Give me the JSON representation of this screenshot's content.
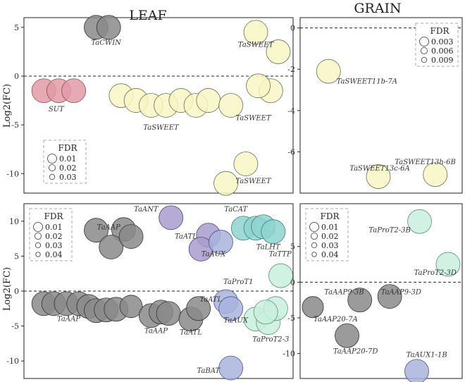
{
  "figure": {
    "title_left": "LEAF",
    "title_right": "GRAIN"
  },
  "colors": {
    "sut": "#e39aa6",
    "sweet": "#f8f6c4",
    "aa": "#8a8a8a",
    "blue": "#a9b3dd",
    "teal": "#8fd3cf",
    "mint": "#c9eede",
    "purple": "#a89ccc"
  },
  "chart_data": [
    {
      "id": "leaf_sugar",
      "type": "scatter",
      "title": "LEAF",
      "ylabel": "Log2(FC)",
      "ylim": [
        -12,
        6
      ],
      "yticks": [
        5,
        0,
        -5,
        -10
      ],
      "xlim": [
        0,
        100
      ],
      "grid": false,
      "reference_line": 0,
      "points": [
        {
          "x": 25,
          "y": 5.0,
          "fdr": 0.02,
          "group": "aa"
        },
        {
          "x": 30,
          "y": 5.0,
          "fdr": 0.015,
          "group": "aa"
        },
        {
          "x": 4,
          "y": -1.5,
          "fdr": 0.005,
          "group": "sut"
        },
        {
          "x": 10,
          "y": -1.5,
          "fdr": 0.005,
          "group": "sut"
        },
        {
          "x": 16,
          "y": -1.5,
          "fdr": 0.005,
          "group": "sut"
        },
        {
          "x": 35,
          "y": -2.0,
          "fdr": 0.004,
          "group": "sweet"
        },
        {
          "x": 41,
          "y": -2.5,
          "fdr": 0.004,
          "group": "sweet"
        },
        {
          "x": 47,
          "y": -3.0,
          "fdr": 0.006,
          "group": "sweet"
        },
        {
          "x": 53,
          "y": -3.0,
          "fdr": 0.006,
          "group": "sweet"
        },
        {
          "x": 59,
          "y": -2.5,
          "fdr": 0.008,
          "group": "sweet"
        },
        {
          "x": 65,
          "y": -3.0,
          "fdr": 0.008,
          "group": "sweet"
        },
        {
          "x": 70,
          "y": -2.5,
          "fdr": 0.008,
          "group": "sweet"
        },
        {
          "x": 79,
          "y": -3.0,
          "fdr": 0.012,
          "group": "sweet"
        },
        {
          "x": 89,
          "y": 4.5,
          "fdr": 0.01,
          "group": "sweet"
        },
        {
          "x": 98,
          "y": 2.5,
          "fdr": 0.02,
          "group": "sweet"
        },
        {
          "x": 95,
          "y": -1.5,
          "fdr": 0.018,
          "group": "sweet"
        },
        {
          "x": 90,
          "y": -1.0,
          "fdr": 0.03,
          "group": "sweet"
        },
        {
          "x": 85,
          "y": -9.0,
          "fdr": 0.01,
          "group": "sweet"
        },
        {
          "x": 77,
          "y": -11.0,
          "fdr": 0.006,
          "group": "sweet"
        }
      ],
      "annotations": [
        {
          "text": "TaCWIN",
          "x": 29,
          "y": 3.2
        },
        {
          "text": "SUT",
          "x": 9,
          "y": -3.6
        },
        {
          "text": "TaSWEET",
          "x": 51,
          "y": -5.5
        },
        {
          "text": "TaSWEET",
          "x": 89,
          "y": 3.0
        },
        {
          "text": "TaSWEET",
          "x": 88,
          "y": -4.5
        },
        {
          "text": "TaSWEET",
          "x": 88,
          "y": -11.0
        }
      ],
      "legend": {
        "title": "FDR",
        "placement": "bottom-left",
        "labels": [
          "0.01",
          "0.02",
          "0.03"
        ],
        "levels": [
          0.01,
          0.02,
          0.03
        ]
      }
    },
    {
      "id": "grain_sugar",
      "type": "scatter",
      "title": "GRAIN",
      "ylabel": "",
      "ylim": [
        -8,
        0.5
      ],
      "yticks": [
        0,
        -2,
        -4,
        -6
      ],
      "xlim": [
        0,
        100
      ],
      "grid": false,
      "reference_line": 0,
      "points": [
        {
          "x": 13,
          "y": -2.1,
          "fdr": 0.003,
          "group": "sweet"
        },
        {
          "x": 48,
          "y": -7.2,
          "fdr": 0.009,
          "group": "sweet"
        },
        {
          "x": 88,
          "y": -7.1,
          "fdr": 0.003,
          "group": "sweet"
        }
      ],
      "annotations": [
        {
          "text": "TaSWEET11b-7A",
          "x": 40,
          "y": -2.7
        },
        {
          "text": "TaSWEET13c-6A",
          "x": 49,
          "y": -6.9
        },
        {
          "text": "TaSWEET13h-6B",
          "x": 81,
          "y": -6.6
        }
      ],
      "legend": {
        "title": "FDR",
        "placement": "top-right",
        "labels": [
          "0.003",
          "0.006",
          "0.009"
        ],
        "levels": [
          0.003,
          0.006,
          0.009
        ]
      }
    },
    {
      "id": "leaf_amino",
      "type": "scatter",
      "title": "",
      "ylabel": "Log2(FC)",
      "ylim": [
        -12.5,
        12.5
      ],
      "yticks": [
        10,
        5,
        0,
        -5,
        -10
      ],
      "xlim": [
        0,
        100
      ],
      "grid": false,
      "reference_line": 0,
      "points": [
        {
          "x": 4,
          "y": -1.8,
          "fdr": 0.02,
          "group": "aa"
        },
        {
          "x": 8,
          "y": -1.8,
          "fdr": 0.015,
          "group": "aa"
        },
        {
          "x": 13,
          "y": -1.8,
          "fdr": 0.015,
          "group": "aa"
        },
        {
          "x": 18,
          "y": -1.8,
          "fdr": 0.02,
          "group": "aa"
        },
        {
          "x": 22,
          "y": -2.2,
          "fdr": 0.015,
          "group": "aa"
        },
        {
          "x": 25,
          "y": -2.8,
          "fdr": 0.012,
          "group": "aa"
        },
        {
          "x": 29,
          "y": -2.7,
          "fdr": 0.01,
          "group": "aa"
        },
        {
          "x": 33,
          "y": -2.6,
          "fdr": 0.015,
          "group": "aa"
        },
        {
          "x": 39,
          "y": -2.2,
          "fdr": 0.04,
          "group": "aa"
        },
        {
          "x": 25,
          "y": 8.7,
          "fdr": 0.012,
          "group": "aa"
        },
        {
          "x": 36,
          "y": 8.8,
          "fdr": 0.008,
          "group": "aa"
        },
        {
          "x": 31,
          "y": 6.3,
          "fdr": 0.014,
          "group": "aa"
        },
        {
          "x": 39,
          "y": 7.8,
          "fdr": 0.035,
          "group": "aa"
        },
        {
          "x": 47,
          "y": -3.5,
          "fdr": 0.035,
          "group": "aa"
        },
        {
          "x": 51,
          "y": -3.0,
          "fdr": 0.012,
          "group": "aa"
        },
        {
          "x": 54,
          "y": -3.2,
          "fdr": 0.006,
          "group": "aa"
        },
        {
          "x": 63,
          "y": -4.0,
          "fdr": 0.02,
          "group": "aa"
        },
        {
          "x": 66,
          "y": -2.5,
          "fdr": 0.035,
          "group": "aa"
        },
        {
          "x": 55,
          "y": 10.5,
          "fdr": 0.01,
          "group": "purple"
        },
        {
          "x": 70,
          "y": 8.0,
          "fdr": 0.02,
          "group": "purple"
        },
        {
          "x": 67,
          "y": 6.0,
          "fdr": 0.02,
          "group": "purple"
        },
        {
          "x": 75,
          "y": 7.0,
          "fdr": 0.035,
          "group": "blue"
        },
        {
          "x": 77,
          "y": -1.5,
          "fdr": 0.025,
          "group": "blue"
        },
        {
          "x": 79,
          "y": -2.5,
          "fdr": 0.015,
          "group": "blue"
        },
        {
          "x": 84,
          "y": 9.0,
          "fdr": 0.01,
          "group": "teal"
        },
        {
          "x": 89,
          "y": 9.0,
          "fdr": 0.02,
          "group": "teal"
        },
        {
          "x": 92,
          "y": 9.2,
          "fdr": 0.012,
          "group": "teal"
        },
        {
          "x": 96,
          "y": 8.5,
          "fdr": 0.015,
          "group": "teal"
        },
        {
          "x": 99,
          "y": 2.2,
          "fdr": 0.01,
          "group": "mint"
        },
        {
          "x": 89,
          "y": -4.0,
          "fdr": 0.015,
          "group": "mint"
        },
        {
          "x": 94,
          "y": -4.5,
          "fdr": 0.01,
          "group": "mint"
        },
        {
          "x": 97,
          "y": -2.5,
          "fdr": 0.01,
          "group": "mint"
        },
        {
          "x": 93,
          "y": -3.0,
          "fdr": 0.02,
          "group": "mint"
        },
        {
          "x": 79,
          "y": -11.0,
          "fdr": 0.01,
          "group": "blue"
        }
      ],
      "annotations": [
        {
          "text": "TaANT",
          "x": 45,
          "y": 11.4
        },
        {
          "text": "TaAAP",
          "x": 30,
          "y": 8.8
        },
        {
          "text": "TaATL",
          "x": 61,
          "y": 7.5
        },
        {
          "text": "TaAUX",
          "x": 72,
          "y": 5.0
        },
        {
          "text": "TaCAT",
          "x": 81,
          "y": 11.4
        },
        {
          "text": "TaLHT",
          "x": 94,
          "y": 6.0
        },
        {
          "text": "TaTTP",
          "x": 99,
          "y": 5.0
        },
        {
          "text": "TaProT1",
          "x": 82,
          "y": 1.0
        },
        {
          "text": "TaATL",
          "x": 71,
          "y": -1.5
        },
        {
          "text": "TaAAP",
          "x": 14,
          "y": -4.3
        },
        {
          "text": "TaAAP",
          "x": 49,
          "y": -6.0
        },
        {
          "text": "TaATL",
          "x": 63,
          "y": -6.2
        },
        {
          "text": "TaAUX",
          "x": 81,
          "y": -4.5
        },
        {
          "text": "TaProT2-3",
          "x": 95,
          "y": -7.2
        },
        {
          "text": "TaBAT",
          "x": 70,
          "y": -11.7
        }
      ],
      "legend": {
        "title": "FDR",
        "placement": "top-left",
        "labels": [
          "0.01",
          "0.02",
          "0.03",
          "0.04"
        ],
        "levels": [
          0.01,
          0.02,
          0.03,
          0.04
        ]
      }
    },
    {
      "id": "grain_amino",
      "type": "scatter",
      "title": "",
      "ylabel": "",
      "ylim": [
        -13.5,
        11
      ],
      "yticks": [
        5,
        0,
        -5,
        -10
      ],
      "xlim": [
        0,
        100
      ],
      "grid": false,
      "reference_line": 0,
      "points": [
        {
          "x": 77,
          "y": 8.5,
          "fdr": 0.01,
          "group": "mint"
        },
        {
          "x": 97,
          "y": 2.5,
          "fdr": 0.03,
          "group": "mint"
        },
        {
          "x": 35,
          "y": -2.5,
          "fdr": 0.035,
          "group": "aa"
        },
        {
          "x": 56,
          "y": -2.0,
          "fdr": 0.035,
          "group": "aa"
        },
        {
          "x": 2,
          "y": -3.5,
          "fdr": 0.045,
          "group": "aa"
        },
        {
          "x": 26,
          "y": -7.5,
          "fdr": 0.02,
          "group": "aa"
        },
        {
          "x": 75,
          "y": -12.5,
          "fdr": 0.01,
          "group": "blue"
        }
      ],
      "annotations": [
        {
          "text": "TaProT2-3B",
          "x": 56,
          "y": 7.0
        },
        {
          "text": "TaProT2-3D",
          "x": 88,
          "y": 1.0
        },
        {
          "text": "TaAAP9-3B",
          "x": 24,
          "y": -1.7
        },
        {
          "text": "TaAAP9-3D",
          "x": 64,
          "y": -1.7
        },
        {
          "text": "TaAAP20-7A",
          "x": 18,
          "y": -5.5
        },
        {
          "text": "TaAAP20-7D",
          "x": 32,
          "y": -10.0
        },
        {
          "text": "TaAUX1-1B",
          "x": 82,
          "y": -10.5
        }
      ],
      "legend": {
        "title": "FDR",
        "placement": "top-left",
        "labels": [
          "0.01",
          "0.02",
          "0.03",
          "0.04"
        ],
        "levels": [
          0.01,
          0.02,
          0.03,
          0.04
        ]
      }
    }
  ]
}
